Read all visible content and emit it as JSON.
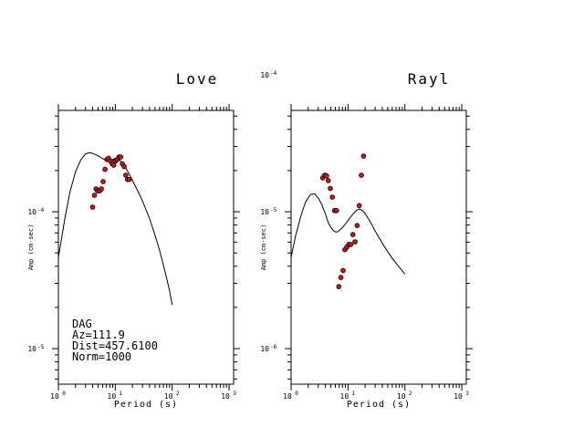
{
  "chart_data": [
    {
      "type": "scatter",
      "title": "Love",
      "xlabel": "Period (s)",
      "ylabel": "Amp (cm-sec)",
      "x_scale": "log",
      "y_scale": "log",
      "xlim": [
        1,
        1200
      ],
      "ylim": [
        5.5e-06,
        0.00055
      ],
      "x_ticks": [
        {
          "base": "10",
          "exp": "0"
        },
        {
          "base": "10",
          "exp": "1"
        },
        {
          "base": "10",
          "exp": "2"
        },
        {
          "base": "10",
          "exp": "3"
        }
      ],
      "y_ticks": [
        {
          "value": 1e-05,
          "base": "10",
          "exp": "-5"
        },
        {
          "value": 0.0001,
          "base": "10",
          "exp": "-4"
        }
      ],
      "theory_curve": {
        "x": [
          1.0,
          1.3,
          1.6,
          2.0,
          2.5,
          3.0,
          3.5,
          4.0,
          5.0,
          6.0,
          7.0,
          8.0,
          9.0,
          10,
          11,
          12,
          13,
          14,
          15,
          16,
          18,
          20,
          25,
          30,
          40,
          50,
          60,
          70,
          80,
          90,
          100
        ],
        "y": [
          4.64e-05,
          8.92e-05,
          0.00014,
          0.000196,
          0.000241,
          0.000265,
          0.00027,
          0.000267,
          0.000256,
          0.000244,
          0.000238,
          0.000238,
          0.000241,
          0.000246,
          0.000244,
          0.000238,
          0.000229,
          0.00022,
          0.000211,
          0.000202,
          0.000185,
          0.00017,
          0.000141,
          0.00012,
          8.92e-05,
          6.75e-05,
          5.22e-05,
          4.09e-05,
          3.26e-05,
          2.63e-05,
          2.09e-05
        ]
      },
      "points": {
        "x": [
          4.0,
          4.3,
          4.6,
          4.9,
          5.3,
          5.7,
          6.1,
          6.6,
          7.1,
          7.6,
          8.2,
          8.8,
          9.4,
          10.1,
          10.8,
          11.6,
          12.4,
          13.3,
          14.3,
          15.3,
          16.4,
          17.6
        ],
        "y": [
          0.000108,
          0.000132,
          0.000147,
          0.000142,
          0.000142,
          0.000147,
          0.000166,
          0.000204,
          0.000241,
          0.000246,
          0.000235,
          0.000224,
          0.000219,
          0.000235,
          0.00024,
          0.000251,
          0.000251,
          0.000224,
          0.000214,
          0.000185,
          0.000172,
          0.000172
        ]
      },
      "annotations": [
        "DAG",
        "Az=111.9",
        "Dist=457.6100",
        "Norm=1000"
      ]
    },
    {
      "type": "scatter",
      "title": "Rayl",
      "xlabel": "Period (s)",
      "ylabel": "Amp (cm-sec)",
      "x_scale": "log",
      "y_scale": "log",
      "xlim": [
        1,
        1200
      ],
      "ylim": [
        5.5e-07,
        5.5e-05
      ],
      "x_ticks": [
        {
          "base": "10",
          "exp": "0"
        },
        {
          "base": "10",
          "exp": "1"
        },
        {
          "base": "10",
          "exp": "2"
        },
        {
          "base": "10",
          "exp": "3"
        }
      ],
      "y_ticks": [
        {
          "value": 1e-06,
          "base": "10",
          "exp": "-6"
        },
        {
          "value": 1e-05,
          "base": "10",
          "exp": "-5"
        },
        {
          "value": 0.0001,
          "base": "10",
          "exp": "-4"
        }
      ],
      "theory_curve": {
        "x": [
          1.0,
          1.2,
          1.5,
          1.8,
          2.2,
          2.6,
          3.0,
          3.5,
          4.0,
          4.5,
          5.0,
          5.5,
          6.0,
          6.5,
          7.0,
          7.5,
          8.0,
          9.0,
          10,
          11,
          12,
          14,
          16,
          18,
          20,
          25,
          30,
          40,
          50,
          60,
          80,
          100
        ],
        "y": [
          4.64e-06,
          6.64e-06,
          9.47e-06,
          1.18e-05,
          1.34e-05,
          1.35e-05,
          1.26e-05,
          1.12e-05,
          9.69e-06,
          8.34e-06,
          7.7e-06,
          7.3e-06,
          7.13e-06,
          7.13e-06,
          7.3e-06,
          7.48e-06,
          7.66e-06,
          8.13e-06,
          8.62e-06,
          9.1e-06,
          9.53e-06,
          1.02e-05,
          1.05e-05,
          1.02e-05,
          9.72e-06,
          8.34e-06,
          7.23e-06,
          5.89e-06,
          5.11e-06,
          4.56e-06,
          3.93e-06,
          3.51e-06
        ]
      },
      "points": {
        "x": [
          3.6,
          3.9,
          4.2,
          4.5,
          4.9,
          5.3,
          5.8,
          6.3,
          6.9,
          7.5,
          8.2,
          8.8,
          9.5,
          10.3,
          11.2,
          12.2,
          13.3,
          14.5,
          15.8,
          17.2,
          18.8
        ],
        "y": [
          1.77e-05,
          1.85e-05,
          1.83e-05,
          1.69e-05,
          1.48e-05,
          1.28e-05,
          1.02e-05,
          1.02e-05,
          2.84e-06,
          3.31e-06,
          3.72e-06,
          5.28e-06,
          5.51e-06,
          5.77e-06,
          5.77e-06,
          6.81e-06,
          6.03e-06,
          7.93e-06,
          1.11e-05,
          1.85e-05,
          2.55e-05
        ]
      },
      "annotations": []
    }
  ]
}
